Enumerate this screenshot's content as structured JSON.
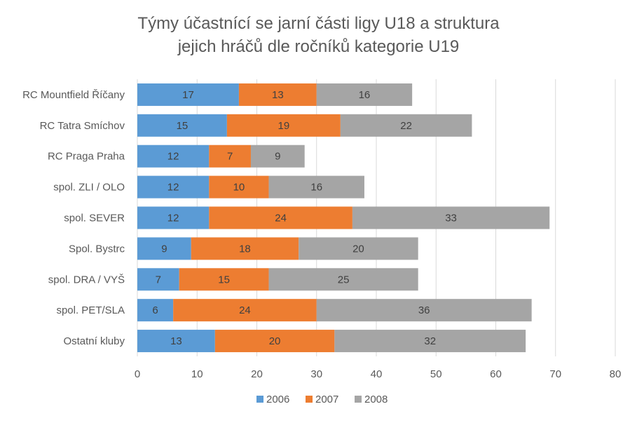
{
  "chart_data": {
    "type": "bar",
    "orientation": "horizontal",
    "stacked": true,
    "title_lines": [
      "Týmy účastnící se jarní části ligy U18 a struktura",
      "jejich hráčů dle ročníků kategorie U19"
    ],
    "categories": [
      "RC Mountfield Říčany",
      "RC Tatra Smíchov",
      "RC Praga Praha",
      "spol. ZLI / OLO",
      "spol. SEVER",
      "Spol. Bystrc",
      "spol. DRA / VYŠ",
      "spol. PET/SLA",
      "Ostatní kluby"
    ],
    "series": [
      {
        "name": "2006",
        "color": "#5b9bd5",
        "values": [
          17,
          15,
          12,
          12,
          12,
          9,
          7,
          6,
          13
        ]
      },
      {
        "name": "2007",
        "color": "#ed7d31",
        "values": [
          13,
          19,
          7,
          10,
          24,
          18,
          15,
          24,
          20
        ]
      },
      {
        "name": "2008",
        "color": "#a5a5a5",
        "values": [
          16,
          22,
          9,
          16,
          33,
          20,
          25,
          36,
          32
        ]
      }
    ],
    "xlim": [
      0,
      80
    ],
    "x_ticks": [
      "0",
      "10",
      "20",
      "30",
      "40",
      "50",
      "60",
      "70",
      "80"
    ],
    "grid": true,
    "legend_position": "bottom"
  }
}
